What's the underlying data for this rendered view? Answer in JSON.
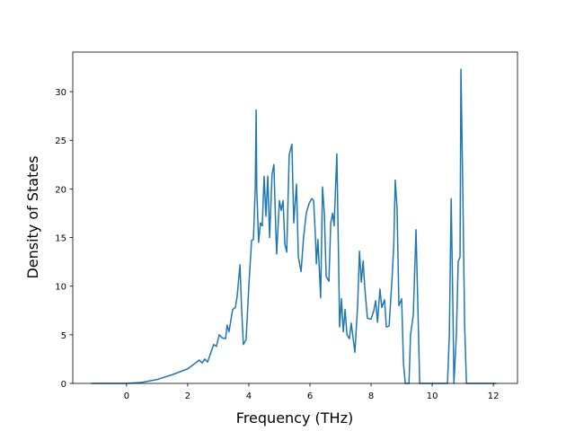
{
  "chart_data": {
    "type": "line",
    "xlabel": "Frequency (THz)",
    "ylabel": "Density of States",
    "x": [
      -1.15,
      0,
      0.5,
      1.0,
      1.5,
      2.0,
      2.21,
      2.38,
      2.47,
      2.56,
      2.65,
      2.74,
      2.85,
      2.94,
      3.03,
      3.12,
      3.24,
      3.29,
      3.35,
      3.47,
      3.56,
      3.62,
      3.71,
      3.76,
      3.82,
      3.91,
      4.0,
      4.09,
      4.15,
      4.21,
      4.24,
      4.26,
      4.32,
      4.38,
      4.44,
      4.5,
      4.56,
      4.62,
      4.68,
      4.76,
      4.82,
      4.88,
      4.91,
      5.0,
      5.06,
      5.12,
      5.18,
      5.24,
      5.32,
      5.41,
      5.47,
      5.56,
      5.62,
      5.71,
      5.79,
      5.88,
      5.97,
      6.06,
      6.12,
      6.18,
      6.21,
      6.26,
      6.35,
      6.41,
      6.47,
      6.53,
      6.62,
      6.68,
      6.74,
      6.79,
      6.88,
      6.94,
      6.97,
      7.03,
      7.09,
      7.15,
      7.21,
      7.29,
      7.35,
      7.47,
      7.56,
      7.62,
      7.68,
      7.74,
      7.79,
      7.88,
      8.0,
      8.09,
      8.15,
      8.21,
      8.29,
      8.35,
      8.44,
      8.5,
      8.59,
      8.68,
      8.74,
      8.79,
      8.85,
      8.91,
      9.0,
      9.06,
      9.12,
      9.24,
      9.29,
      9.38,
      9.47,
      9.53,
      9.59,
      10.5,
      10.56,
      10.62,
      10.68,
      10.71,
      10.79,
      10.85,
      10.91,
      10.94,
      11.0,
      11.06,
      11.12,
      12.1
    ],
    "series": [
      {
        "color": "#1f77b4",
        "values": [
          0,
          0,
          0.1,
          0.4,
          0.9,
          1.5,
          2.0,
          2.4,
          2.1,
          2.5,
          2.2,
          3.0,
          4.0,
          3.8,
          5.0,
          4.7,
          4.6,
          6.0,
          5.3,
          7.6,
          7.8,
          9,
          12.2,
          8,
          4.0,
          4.5,
          10,
          14.7,
          14.8,
          20,
          28.1,
          20,
          14.5,
          16.5,
          16.2,
          21.3,
          17.2,
          21.3,
          15,
          21.5,
          22.5,
          16,
          13.3,
          18.8,
          17.8,
          18.8,
          14.3,
          13.5,
          23.5,
          24.6,
          16.5,
          20.5,
          13,
          11.5,
          15,
          17.5,
          18.5,
          19,
          18.8,
          15,
          12.3,
          14.8,
          8.8,
          20.2,
          17.5,
          11,
          10.5,
          16.5,
          17.5,
          16.2,
          23.6,
          12,
          5.8,
          8.7,
          5.3,
          7.6,
          5,
          4.6,
          6.2,
          3.2,
          8,
          13.6,
          10.4,
          12.6,
          10,
          6.7,
          6.6,
          7.5,
          8.5,
          6.3,
          9.7,
          7.8,
          8.6,
          5.8,
          5.9,
          10.5,
          14,
          20.9,
          18,
          8,
          8.7,
          2,
          0,
          0,
          5,
          7,
          15.8,
          8,
          0,
          0,
          5,
          19,
          7,
          0,
          5,
          12.5,
          13,
          32.3,
          20,
          6,
          0,
          0
        ]
      }
    ],
    "xlim": [
      -1.76,
      12.79
    ],
    "ylim": [
      0,
      34.07
    ],
    "xticks": [
      0,
      2,
      4,
      6,
      8,
      10,
      12
    ],
    "yticks": [
      0,
      5,
      10,
      15,
      20,
      25,
      30
    ]
  }
}
